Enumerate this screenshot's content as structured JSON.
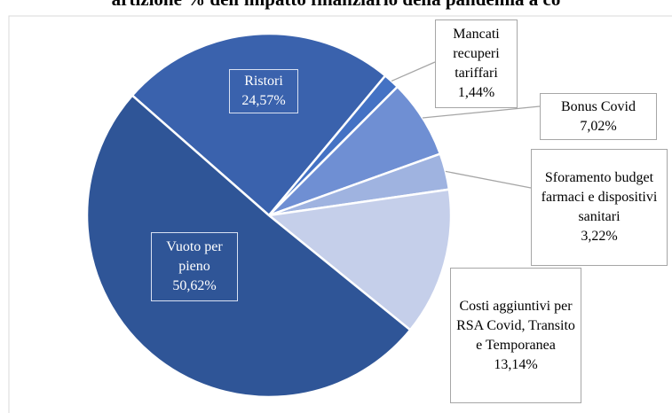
{
  "chart_data": {
    "type": "pie",
    "title": "artizione % dell'impatto finanziario della pandemia a co",
    "categories": [
      "Ristori",
      "Mancati recuperi tariffari",
      "Bonus Covid",
      "Sforamento budget farmaci e dispositivi sanitari",
      "Costi aggiuntivi per RSA Covid, Transito e Temporanea",
      "Vuoto per pieno"
    ],
    "values": [
      24.57,
      1.44,
      7.02,
      3.22,
      13.14,
      50.62
    ],
    "value_labels": [
      "24,57%",
      "1,44%",
      "7,02%",
      "3,22%",
      "13,14%",
      "50,62%"
    ],
    "colors": [
      "#3a62ad",
      "#4472c4",
      "#6f8fd3",
      "#9fb3e0",
      "#c5cfea",
      "#2f5597"
    ]
  }
}
